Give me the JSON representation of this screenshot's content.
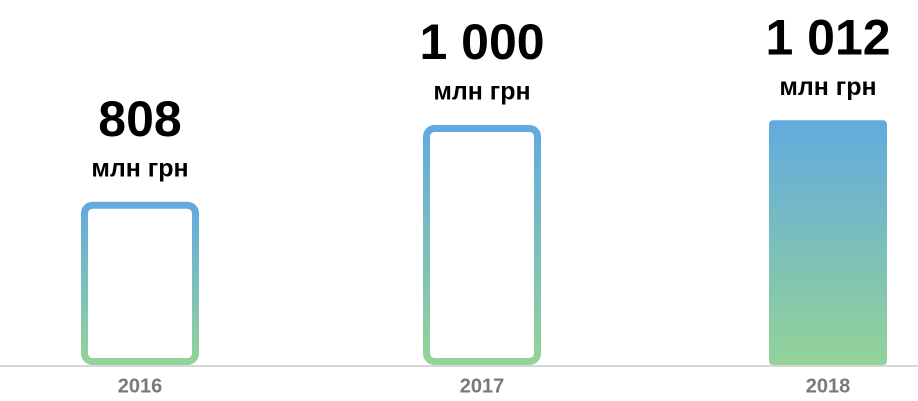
{
  "chart_data": {
    "type": "bar",
    "categories": [
      "2016",
      "2017",
      "2018"
    ],
    "values": [
      808,
      1000,
      1012
    ],
    "value_labels": [
      "808",
      "1 000",
      "1 012"
    ],
    "unit": "млн грн",
    "fill_style": [
      "outline",
      "outline",
      "solid"
    ],
    "color": [
      "#62aadf",
      "#93d398"
    ],
    "ylim": [
      400,
      1050
    ]
  }
}
